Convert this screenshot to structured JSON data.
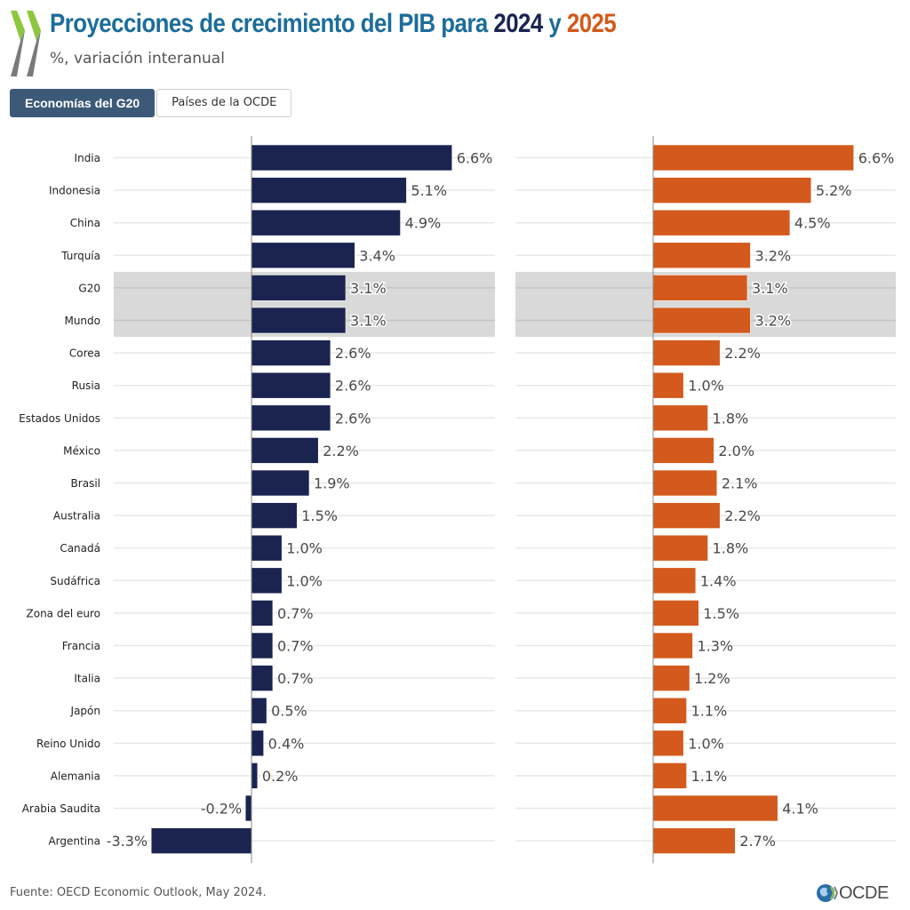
{
  "header": {
    "title_prefix": "Proyecciones de crecimiento del PIB para",
    "title_year1": "2024",
    "title_joiner": "y",
    "title_year2": "2025",
    "subtitle": "%, variación interanual"
  },
  "tabs": [
    {
      "label": "Economías del G20",
      "active": true
    },
    {
      "label": "Países de la OCDE",
      "active": false
    }
  ],
  "colors": {
    "series_2024": "#1b2450",
    "series_2025": "#d35a1c",
    "title": "#1c6d9a",
    "highlight_band": "#d9d9d9"
  },
  "chart_data": {
    "type": "bar",
    "orientation": "horizontal",
    "title": "Proyecciones de crecimiento del PIB para 2024 y 2025",
    "subtitle": "%, variación interanual",
    "xlabel": "",
    "ylabel": "",
    "grid": true,
    "highlighted_categories": [
      "G20",
      "Mundo"
    ],
    "categories": [
      "India",
      "Indonesia",
      "China",
      "Turquía",
      "G20",
      "Mundo",
      "Corea",
      "Rusia",
      "Estados Unidos",
      "México",
      "Brasil",
      "Australia",
      "Canadá",
      "Sudáfrica",
      "Zona del euro",
      "Francia",
      "Italia",
      "Japón",
      "Reino Unido",
      "Alemania",
      "Arabia Saudita",
      "Argentina"
    ],
    "series": [
      {
        "name": "2024",
        "values": [
          6.6,
          5.1,
          4.9,
          3.4,
          3.1,
          3.1,
          2.6,
          2.6,
          2.6,
          2.2,
          1.9,
          1.5,
          1.0,
          1.0,
          0.7,
          0.7,
          0.7,
          0.5,
          0.4,
          0.2,
          -0.2,
          -3.3
        ],
        "labels": [
          "6.6%",
          "5.1%",
          "4.9%",
          "3.4%",
          "3.1%",
          "3.1%",
          "2.6%",
          "2.6%",
          "2.6%",
          "2.2%",
          "1.9%",
          "1.5%",
          "1.0%",
          "1.0%",
          "0.7%",
          "0.7%",
          "0.7%",
          "0.5%",
          "0.4%",
          "0.2%",
          "-0.2%",
          "-3.3%"
        ]
      },
      {
        "name": "2025",
        "values": [
          6.6,
          5.2,
          4.5,
          3.2,
          3.1,
          3.2,
          2.2,
          1.0,
          1.8,
          2.0,
          2.1,
          2.2,
          1.8,
          1.4,
          1.5,
          1.3,
          1.2,
          1.1,
          1.0,
          1.1,
          4.1,
          2.7
        ],
        "labels": [
          "6.6%",
          "5.2%",
          "4.5%",
          "3.2%",
          "3.1%",
          "3.2%",
          "2.2%",
          "1.0%",
          "1.8%",
          "2.0%",
          "2.1%",
          "2.2%",
          "1.8%",
          "1.4%",
          "1.5%",
          "1.3%",
          "1.2%",
          "1.1%",
          "1.0%",
          "1.1%",
          "4.1%",
          "2.7%"
        ]
      }
    ]
  },
  "footer": {
    "source": "Fuente: OECD Economic Outlook, May 2024.",
    "logo_text": "OCDE"
  }
}
